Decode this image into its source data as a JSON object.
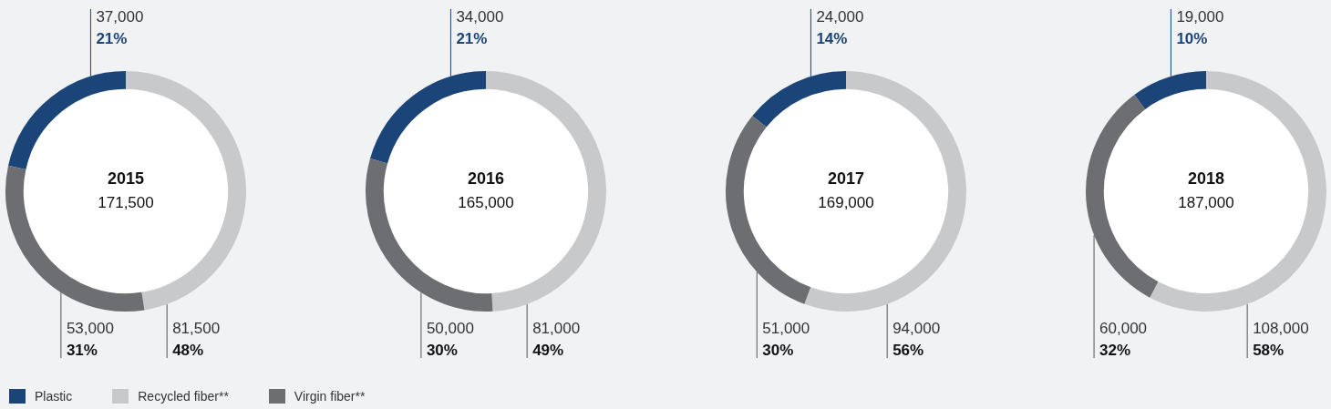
{
  "chart_data": [
    {
      "type": "donut",
      "title": "2015",
      "subtitle": "171,500",
      "categories": [
        "Plastic",
        "Recycled fiber**",
        "Virgin fiber**"
      ],
      "values": [
        37000,
        81500,
        53000
      ],
      "colors": [
        "#1b4478",
        "#c8c9cb",
        "#6d6e71"
      ],
      "value_labels": [
        "37,000",
        "81,500",
        "53,000"
      ],
      "annotations": [
        {
          "text": "21%",
          "x": "Plastic"
        },
        {
          "text": "48%",
          "x": "Recycled fiber**"
        },
        {
          "text": "31%",
          "x": "Virgin fiber**"
        }
      ],
      "legend": "bottom"
    },
    {
      "type": "donut",
      "title": "2016",
      "subtitle": "165,000",
      "categories": [
        null,
        null,
        null
      ],
      "values": [
        34000,
        81000,
        50000
      ],
      "colors": [
        "#1b4478",
        "#c8c9cb",
        "#6d6e71"
      ],
      "value_labels": [
        "34,000",
        "81,000",
        "50,000"
      ],
      "annotations": [
        "21%",
        "49%",
        "30%"
      ]
    },
    {
      "type": "donut",
      "title": "2017",
      "subtitle": "169,000",
      "categories": [
        null,
        null,
        null
      ],
      "values": [
        24000,
        94000,
        51000
      ],
      "colors": [
        "#1b4478",
        "#c8c9cb",
        "#6d6e71"
      ],
      "value_labels": [
        "24,000",
        "94,000",
        "51,000"
      ],
      "annotations": [
        "14%",
        "56%",
        "30%"
      ]
    },
    {
      "type": "donut",
      "title": "2018",
      "subtitle": "187,000",
      "categories": [
        null,
        null,
        null
      ],
      "values": [
        19000,
        108000,
        60000
      ],
      "colors": [
        "#1b4478",
        "#c8c9cb",
        "#6d6e71"
      ],
      "value_labels": [
        "19,000",
        "108,000",
        "60,000"
      ],
      "annotations": [
        "10%",
        "58%",
        "32%"
      ]
    }
  ]
}
